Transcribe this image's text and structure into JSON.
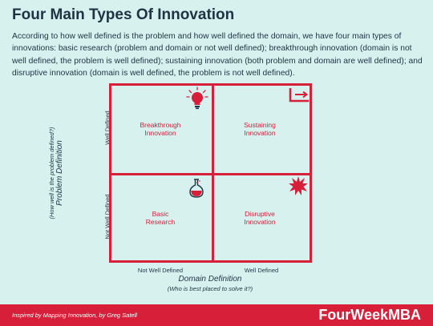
{
  "title": "Four Main Types Of Innovation",
  "intro": "According to how well defined is the problem and how well defined the domain, we have four main types of innovations: basic research (problem and domain or not well defined); breakthrough innovation (domain is not well defined, the problem is well defined); sustaining innovation (both problem and domain are well defined); and disruptive innovation (domain is well defined, the problem is not well defined).",
  "quadrants": {
    "top_left": "Breakthrough\nInnovation",
    "top_right": "Sustaining\nInnovation",
    "bottom_left": "Basic\nResearch",
    "bottom_right": "Disruptive\nInnovation"
  },
  "y_axis": {
    "title": "Problem Definition",
    "subtitle": "(How well is the problem defined?)",
    "top_label": "Well Defined",
    "bottom_label": "Not Well Defined"
  },
  "x_axis": {
    "title": "Domain Definition",
    "subtitle": "(Who is best placed to solve it?)",
    "left_label": "Not Well Defined",
    "right_label": "Well Defined"
  },
  "icons": {
    "top_left": "lightbulb-icon",
    "top_right": "arrow-corner-icon",
    "bottom_left": "flask-icon",
    "bottom_right": "burst-icon"
  },
  "footer": {
    "credit": "Inspired by Mapping Innovation, by Greg Satell",
    "brand": "FourWeekMBA"
  },
  "colors": {
    "background": "#d6f1ee",
    "accent": "#d71f3a",
    "text": "#1f3345"
  }
}
